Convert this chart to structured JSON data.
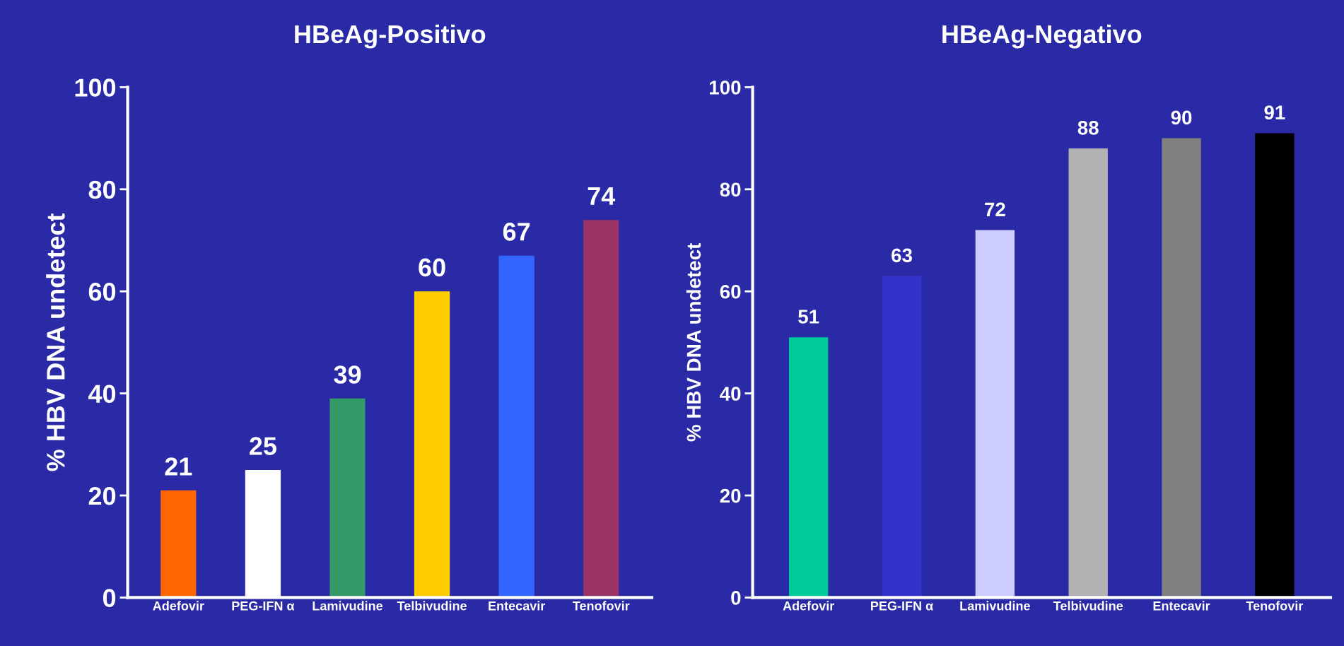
{
  "chart_data": [
    {
      "type": "bar",
      "title": "HBeAg-Positivo",
      "ylabel": "% HBV DNA undetect",
      "categories": [
        "Adefovir",
        "PEG-IFN α",
        "Lamivudine",
        "Telbivudine",
        "Entecavir",
        "Tenofovir"
      ],
      "values": [
        21,
        25,
        39,
        60,
        67,
        74
      ],
      "colors": [
        "#ff6600",
        "#ffffff",
        "#339966",
        "#ffcc00",
        "#3366ff",
        "#993366"
      ],
      "ylim": [
        0,
        100
      ],
      "yticks": [
        0,
        20,
        40,
        60,
        80,
        100
      ],
      "data_labels": true,
      "grid": false,
      "legend": false
    },
    {
      "type": "bar",
      "title": "HBeAg-Negativo",
      "ylabel": "% HBV DNA undetect",
      "categories": [
        "Adefovir",
        "PEG-IFN α",
        "Lamivudine",
        "Telbivudine",
        "Entecavir",
        "Tenofovir"
      ],
      "values": [
        51,
        63,
        72,
        88,
        90,
        91
      ],
      "colors": [
        "#00cc99",
        "#3333cc",
        "#ccccff",
        "#b2b2b2",
        "#808080",
        "#000000"
      ],
      "ylim": [
        0,
        100
      ],
      "yticks": [
        0,
        20,
        40,
        60,
        80,
        100
      ],
      "data_labels": true,
      "grid": false,
      "legend": false
    }
  ]
}
